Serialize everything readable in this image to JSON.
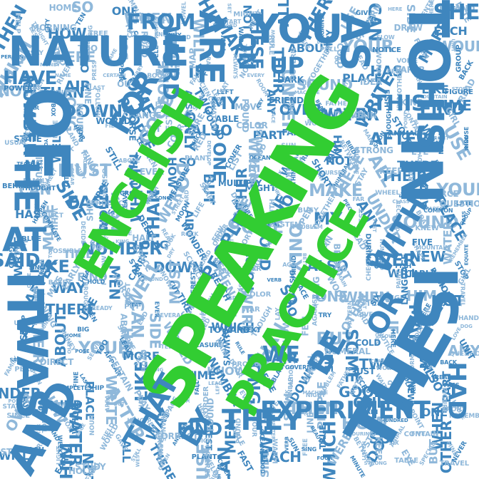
{
  "colors": {
    "primary": "#32cd32",
    "secondary": "#3f86be",
    "tertiary": "#8fb8da",
    "background": "#ffffff"
  },
  "highlight_words": [
    "SPEAKING",
    "ENGLISH",
    "PRACTICE"
  ],
  "major_words": [
    "TO",
    "OF",
    "IN",
    "IS",
    "THE",
    "IT",
    "WAS",
    "AND",
    "NATURE",
    "YOU",
    "AS",
    "HIS",
    "HE",
    "AT",
    "FOR",
    "ARE",
    "ON",
    "WITH",
    "OR",
    "BE",
    "THEY",
    "THAT",
    "BY",
    "EXPERIMENT",
    "FROM",
    "UP",
    "SHE",
    "HAD",
    "THIS",
    "HAVE",
    "WE",
    "WORD",
    "SAID"
  ],
  "medium_words": [
    "THEN",
    "HOW",
    "SO",
    "ONE",
    "WHEN",
    "WILL",
    "HIM",
    "NOT",
    "ALL",
    "THERE",
    "USE",
    "CAN",
    "SIDE",
    "EACH",
    "WHICH",
    "WERE",
    "DO",
    "BUT",
    "OTHER",
    "IF",
    "MAKE",
    "THESE",
    "THEIR",
    "ABOUT",
    "YOUR",
    "HAS",
    "MORE",
    "WOULD",
    "KNOW",
    "THAN",
    "AIR",
    "COME",
    "SOME",
    "TWO",
    "MY",
    "ANY",
    "UNDER",
    "SOUND",
    "PLACE",
    "WRITE",
    "LIKE",
    "TIME",
    "NUMBER",
    "LONG",
    "DOWN",
    "PEOPLE",
    "GOOD",
    "ONLY",
    "ALSO",
    "PART",
    "OVER",
    "NEW",
    "WATER",
    "AFTER",
    "WAY",
    "FIND",
    "MEN",
    "WELL",
    "MUST"
  ],
  "small_words": [
    "HELP",
    "HOME",
    "BIG",
    "PUT",
    "END",
    "WHY",
    "SET",
    "NEXT",
    "SHOW",
    "TRY",
    "GIVE",
    "HERE",
    "WHERE",
    "HAND",
    "SAY",
    "OLD",
    "TOO",
    "SAME",
    "TELL",
    "BOY",
    "ALWAYS",
    "TOOK",
    "SEE",
    "GO",
    "JUST",
    "WORK",
    "FORM",
    "BACK",
    "OUR",
    "NAME",
    "LAST",
    "OUT",
    "PLAY",
    "SEEM",
    "LEFT",
    "EVERY",
    "NEAR",
    "NIGHT",
    "FATHER",
    "MOTHER",
    "KIND",
    "READ",
    "STATE",
    "LAND",
    "PAGE",
    "WORLD",
    "CHANGE",
    "ANSWER",
    "FOUND",
    "MOVE",
    "FAR",
    "LINE",
    "AGAIN",
    "ANIMAL",
    "POINT",
    "HOUSE",
    "PICTURE",
    "LIGHT",
    "STUDY",
    "STILL",
    "LEARN",
    "PLANT",
    "COVER",
    "FOOD",
    "SUN",
    "FOUR",
    "BETWEEN",
    "KEEP",
    "EYE",
    "NEVER",
    "THOUGHT",
    "CITY",
    "TREE",
    "CROSS",
    "FARM",
    "HARD",
    "START",
    "MIGHT",
    "STORY",
    "SAW",
    "FAR",
    "SEA",
    "DRAW",
    "LATE",
    "RUN",
    "WHILE",
    "PRESS",
    "CLOSE",
    "REAL",
    "LIFE",
    "FEW",
    "NORTH",
    "OPEN",
    "TOGETHER",
    "HEAD",
    "FEET",
    "PAPER",
    "GROUP",
    "OFTEN",
    "RIVER",
    "FOLLOW",
    "CARRY",
    "BOOK",
    "SCIENCE",
    "EAT",
    "ROOM",
    "FRIEND",
    "BEGAN",
    "IDEA",
    "FISH",
    "MOUNTAIN",
    "STOP",
    "ONCE",
    "BASE",
    "HEAR",
    "HORSE",
    "CUT",
    "SURE",
    "WATCH",
    "COLOR",
    "FACE",
    "WOOD",
    "MAIN",
    "ENOUGH",
    "PLAIN",
    "GIRL",
    "USUAL",
    "YOUNG",
    "READY",
    "ABOVE",
    "EVER",
    "RED",
    "LIST",
    "THOUGH",
    "FEEL",
    "TALK",
    "BIRD",
    "SOON",
    "BODY",
    "DOG",
    "FAMILY",
    "DIRECT",
    "POSE",
    "LEAVE",
    "SONG",
    "MEASURE",
    "DOOR",
    "PRODUCT",
    "BLACK",
    "SHORT",
    "NUMERAL",
    "CLASS",
    "WIND",
    "QUESTION",
    "HAPPEN",
    "COMPLETE",
    "SHIP",
    "AREA",
    "HALF",
    "ROCK",
    "ORDER",
    "FIRE",
    "SOUTH",
    "PROBLEM",
    "PIECE",
    "TOLD",
    "KNEW",
    "PASS",
    "SINCE",
    "TOP",
    "WHOLE",
    "KING",
    "SPACE",
    "HEARD",
    "BEST",
    "HOUR",
    "BETTER",
    "TRUE",
    "DURING",
    "HUNDRED",
    "FIVE",
    "REMEMBER",
    "STEP",
    "EARLY",
    "HOLD",
    "WEST",
    "GROUND",
    "INTEREST",
    "REACH",
    "FAST",
    "VERB",
    "SING",
    "LISTEN",
    "SIX",
    "TABLE",
    "TRAVEL",
    "LESS",
    "MORNING",
    "TEN",
    "SIMPLE",
    "SEVERAL",
    "VOWEL",
    "TOWARD",
    "WAR",
    "LAY",
    "AGAINST",
    "PATTERN",
    "SLOW",
    "CENTER",
    "LOVE",
    "PERSON",
    "MONEY",
    "SERVE",
    "APPEAR",
    "ROAD",
    "MAP",
    "RAIN",
    "RULE",
    "GOVERN",
    "PULL",
    "COLD",
    "NOTICE",
    "VOICE",
    "UNIT",
    "POWER",
    "TOWN",
    "FINE",
    "CERTAIN",
    "FLY",
    "FALL",
    "LEAD",
    "CRY",
    "DARK",
    "MACHINE",
    "NOTE",
    "WAIT",
    "PLAN",
    "FIGURE",
    "STAR",
    "BOX",
    "NOUN",
    "FIELD",
    "REST",
    "CORRECT",
    "ABLE",
    "POUND",
    "DONE",
    "BEAUTY",
    "DRIVE",
    "STOOD",
    "CONTAIN",
    "FRONT",
    "TEACH",
    "WEEK",
    "FINAL",
    "GAVE",
    "GREEN",
    "QUICK",
    "DEVELOP",
    "OCEAN",
    "WARM",
    "FREE",
    "MINUTE",
    "STRONG",
    "SPECIAL",
    "MIND",
    "BEHIND",
    "CLEAR",
    "TAIL",
    "PRODUCE",
    "FACT",
    "STREET",
    "INCH",
    "MULTIPLY",
    "NOTHING",
    "COURSE",
    "STAY",
    "WHEEL",
    "FULL",
    "FORCE",
    "BLUE",
    "OBJECT",
    "DECIDE",
    "SURFACE",
    "DEEP",
    "MOON",
    "ISLAND",
    "FOOT",
    "SYSTEM",
    "BUSY",
    "TEST",
    "RECORD",
    "BOAT",
    "COMMON",
    "GOLD",
    "POSSIBLE",
    "PLANE",
    "STEAD",
    "DRY",
    "WONDER",
    "LAUGH",
    "THOUSAND",
    "AGO",
    "RAN",
    "CHECK",
    "GAME",
    "SHAPE",
    "EQUATE",
    "HOT",
    "MISS",
    "BROUGHT",
    "HEAT",
    "SNOW",
    "TIRE",
    "BRING",
    "YES",
    "DISTANT",
    "FILL",
    "EAST",
    "PAINT",
    "LANGUAGE",
    "AMONG"
  ]
}
